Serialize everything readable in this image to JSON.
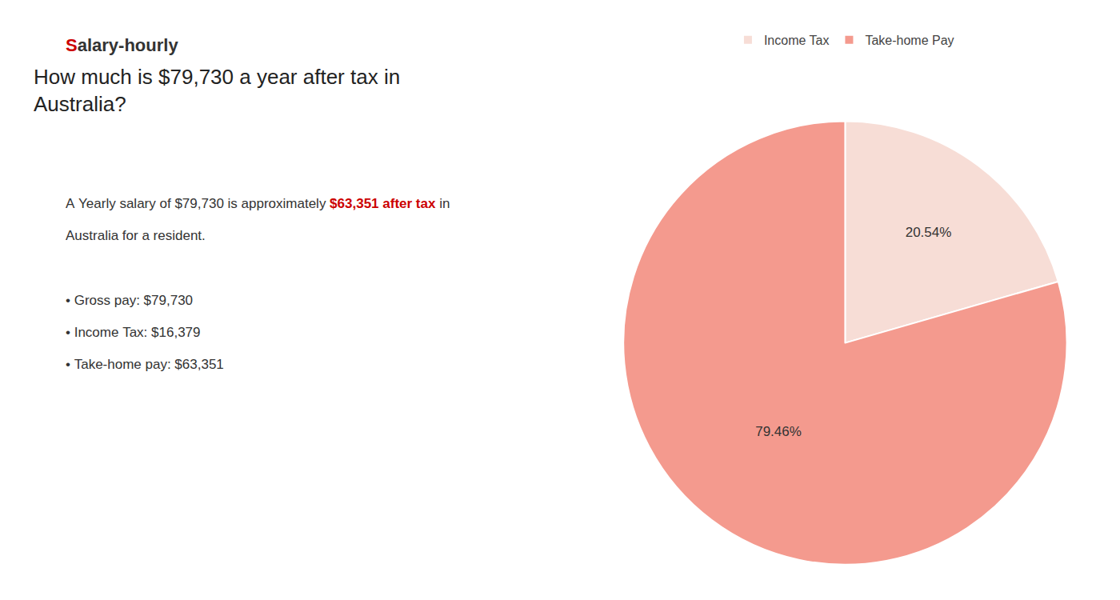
{
  "chart_data": {
    "type": "pie",
    "title": "How much is $79,730 a year after tax in\nAustralia?",
    "categories": [
      "Income Tax",
      "Take-home Pay"
    ],
    "values": [
      20.54,
      79.46
    ],
    "value_labels": [
      "20.54%",
      "79.46%"
    ],
    "colors": [
      "#f7ddd6",
      "#f49a8e"
    ],
    "data_labels": true,
    "legend": "top",
    "annotations": [
      [
        {
          "text": "S",
          "color": "#cc0000"
        },
        {
          "text": "alary-hourly"
        }
      ],
      [
        {
          "text": "A Yearly salary of $79,730 is approximately "
        },
        {
          "text": "$63,351 after tax",
          "color": "#cc0000"
        },
        {
          "text": " in"
        }
      ],
      [
        {
          "text": "Australia for a resident."
        }
      ],
      [
        {
          "text": "• Gross pay: $79,730"
        }
      ],
      [
        {
          "text": "• Income Tax: $16,379"
        }
      ],
      [
        {
          "text": "• Take-home pay: $63,351"
        }
      ]
    ]
  }
}
